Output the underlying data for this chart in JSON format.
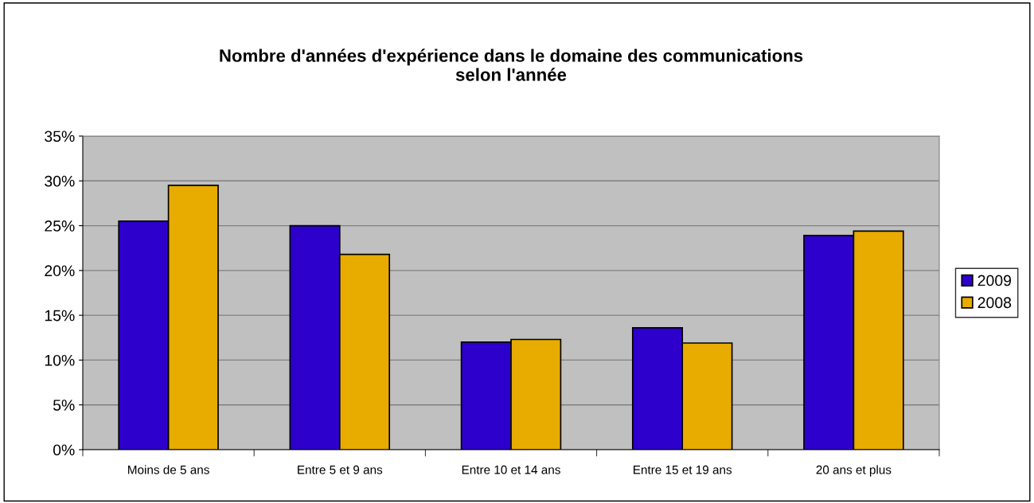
{
  "chart_data": {
    "type": "bar",
    "title": "Nombre d'années d'expérience dans le domaine des communications\nselon l'année",
    "categories": [
      "Moins de 5 ans",
      "Entre 5 et 9 ans",
      "Entre 10 et 14 ans",
      "Entre 15 et 19 ans",
      "20 ans et plus"
    ],
    "series": [
      {
        "name": "2009",
        "color": "#2e00cc",
        "values": [
          25.5,
          25.0,
          12.0,
          13.6,
          23.9
        ]
      },
      {
        "name": "2008",
        "color": "#e8ab00",
        "values": [
          29.5,
          21.8,
          12.3,
          11.9,
          24.4
        ]
      }
    ],
    "ylim": [
      0,
      35
    ],
    "yticks": [
      {
        "value": 0,
        "label": "0%"
      },
      {
        "value": 5,
        "label": "5%"
      },
      {
        "value": 10,
        "label": "10%"
      },
      {
        "value": 15,
        "label": "15%"
      },
      {
        "value": 20,
        "label": "20%"
      },
      {
        "value": 25,
        "label": "25%"
      },
      {
        "value": 30,
        "label": "30%"
      },
      {
        "value": 35,
        "label": "35%"
      }
    ],
    "grid": "y",
    "legend": "right"
  }
}
